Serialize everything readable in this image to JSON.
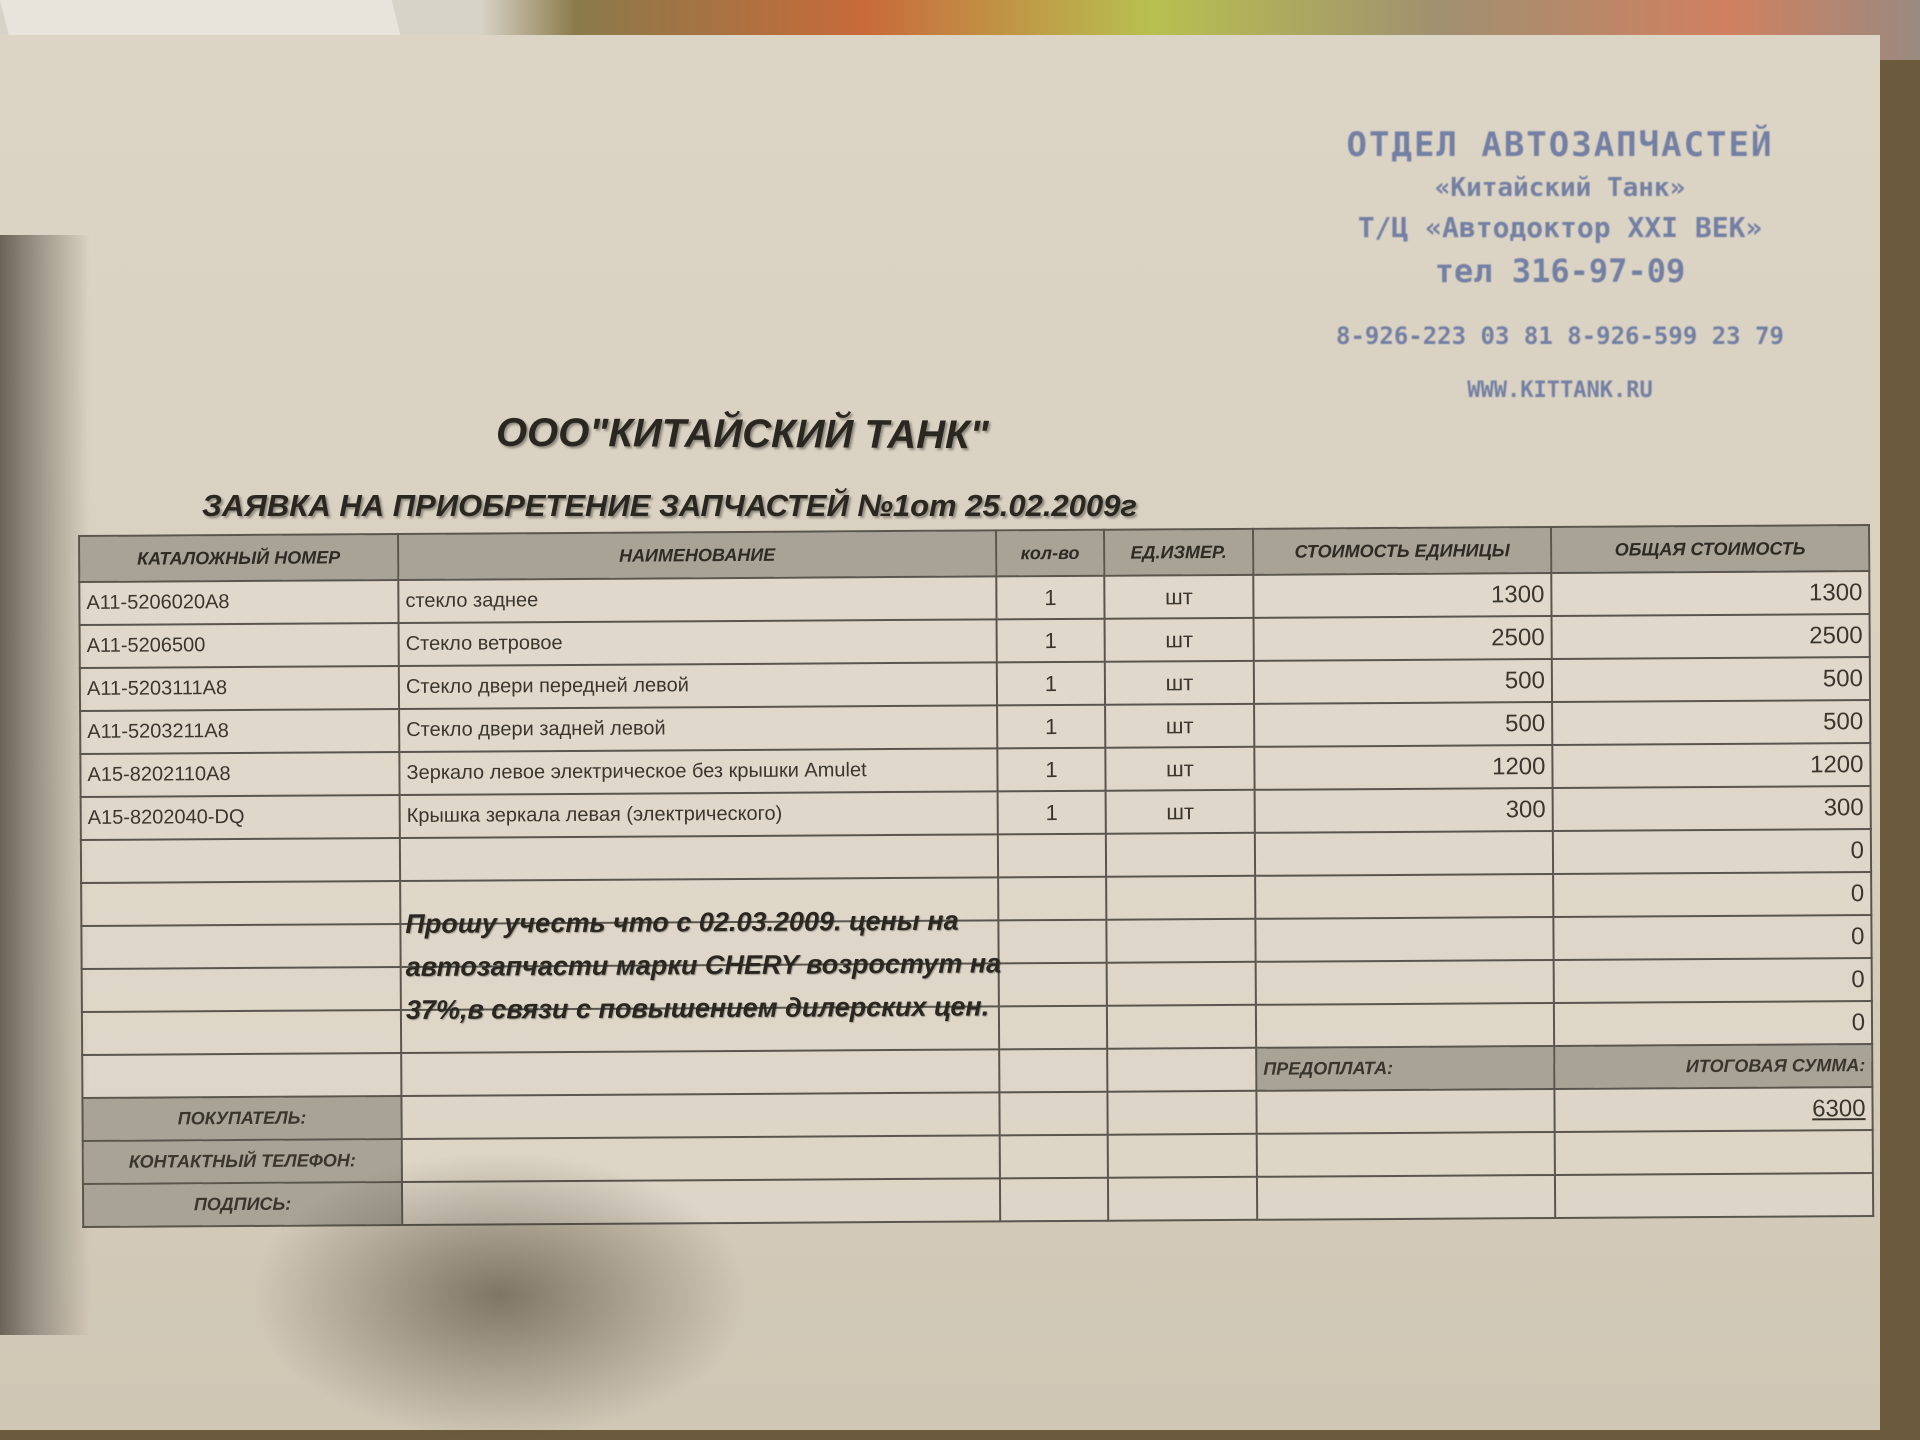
{
  "stamp": {
    "line1": "ОТДЕЛ АВТОЗАПЧАСТЕЙ",
    "line2": "«Китайский Танк»",
    "line3": "Т/Ц «Автодоктор XXI ВЕК»",
    "line4": "тел 316-97-09",
    "line5": "8-926-223 03 81  8-926-599 23 79",
    "line6": "WWW.KITTANK.RU",
    "color": "#5a6b9c"
  },
  "title": "ООО\"КИТАЙСКИЙ ТАНК\"",
  "subtitle": "ЗАЯВКА НА ПРИОБРЕТЕНИЕ ЗАПЧАСТЕЙ №1от 25.02.2009г",
  "table": {
    "headers": [
      "КАТАЛОЖНЫЙ НОМЕР",
      "НАИМЕНОВАНИЕ",
      "кол-во",
      "ЕД.ИЗМЕР.",
      "СТОИМОСТЬ ЕДИНИЦЫ",
      "ОБЩАЯ СТОИМОСТЬ"
    ],
    "rows": [
      {
        "part": "A11-5206020A8",
        "name": "стекло заднее",
        "qty": "1",
        "unit": "шт",
        "price": "1300",
        "total": "1300"
      },
      {
        "part": "A11-5206500",
        "name": "Стекло ветровое",
        "qty": "1",
        "unit": "шт",
        "price": "2500",
        "total": "2500"
      },
      {
        "part": "A11-5203111A8",
        "name": "Стекло двери передней левой",
        "qty": "1",
        "unit": "шт",
        "price": "500",
        "total": "500"
      },
      {
        "part": "A11-5203211A8",
        "name": "Стекло двери задней левой",
        "qty": "1",
        "unit": "шт",
        "price": "500",
        "total": "500"
      },
      {
        "part": "A15-8202110A8",
        "name": "Зеркало левое электрическое  без крышки Amulet",
        "qty": "1",
        "unit": "шт",
        "price": "1200",
        "total": "1200"
      },
      {
        "part": "A15-8202040-DQ",
        "name": "Крышка зеркала левая (электрического)",
        "qty": "1",
        "unit": "шт",
        "price": "300",
        "total": "300"
      }
    ],
    "empty_totals": [
      "0",
      "0",
      "0",
      "0",
      "0"
    ],
    "note_lines": [
      "Прошу учесть что с 02.03.2009.  цены на",
      "автозапчасти марки CHERY возростут на",
      "37%,в связи с повышением дилерских цен."
    ],
    "prepayment_label": "ПРЕДОПЛАТА:",
    "grand_total_label": "ИТОГОВАЯ СУММА:",
    "grand_total": "6300",
    "buyer_label": "ПОКУПАТЕЛЬ:",
    "phone_label": "КОНТАКТНЫЙ ТЕЛЕФОН:",
    "signature_label": "ПОДПИСЬ:"
  }
}
